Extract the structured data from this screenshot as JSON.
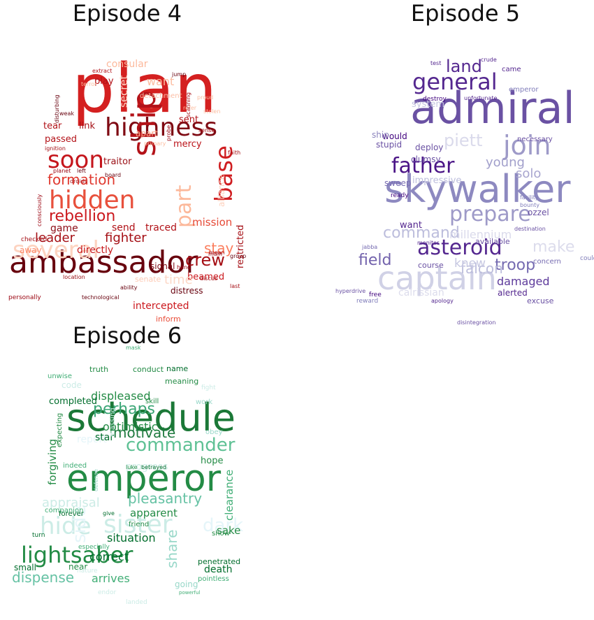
{
  "chart_data": [
    {
      "type": "wordcloud",
      "title": "Episode 4",
      "colormap": "Reds",
      "words": [
        {
          "text": "plan",
          "size": 96,
          "color": "#d42020"
        },
        {
          "text": "ambassador",
          "size": 44,
          "color": "#67000d"
        },
        {
          "text": "highness",
          "size": 36,
          "color": "#7f0a13"
        },
        {
          "text": "ship",
          "size": 46,
          "color": "#b31218"
        },
        {
          "text": "soon",
          "size": 34,
          "color": "#c5161c"
        },
        {
          "text": "hidden",
          "size": 36,
          "color": "#e8503c"
        },
        {
          "text": "base",
          "size": 34,
          "color": "#cf1d20"
        },
        {
          "text": "part",
          "size": 30,
          "color": "#fcb89a"
        },
        {
          "text": "several",
          "size": 34,
          "color": "#fdd3c0"
        },
        {
          "text": "formation",
          "size": 20,
          "color": "#e0392f"
        },
        {
          "text": "rebellion",
          "size": 22,
          "color": "#cb181d"
        },
        {
          "text": "leader",
          "size": 18,
          "color": "#a50f15"
        },
        {
          "text": "fighter",
          "size": 18,
          "color": "#a50f15"
        },
        {
          "text": "crew",
          "size": 24,
          "color": "#a50f15"
        },
        {
          "text": "stay",
          "size": 20,
          "color": "#fb7d5d"
        },
        {
          "text": "mission",
          "size": 15,
          "color": "#e64a37"
        },
        {
          "text": "send",
          "size": 14,
          "color": "#b11218"
        },
        {
          "text": "traced",
          "size": 14,
          "color": "#b11218"
        },
        {
          "text": "game",
          "size": 14,
          "color": "#8d0c15"
        },
        {
          "text": "directly",
          "size": 14,
          "color": "#c71b1e"
        },
        {
          "text": "beamed",
          "size": 13,
          "color": "#cb181d"
        },
        {
          "text": "signal",
          "size": 12,
          "color": "#7b0811"
        },
        {
          "text": "restricted",
          "size": 13,
          "color": "#a50f15"
        },
        {
          "text": "consular",
          "size": 14,
          "color": "#fcb99c"
        },
        {
          "text": "want",
          "size": 16,
          "color": "#fcbda1"
        },
        {
          "text": "play",
          "size": 13,
          "color": "#b31218"
        },
        {
          "text": "tear",
          "size": 13,
          "color": "#b11218"
        },
        {
          "text": "link",
          "size": 13,
          "color": "#a50f15"
        },
        {
          "text": "passed",
          "size": 13,
          "color": "#b31218"
        },
        {
          "text": "sent",
          "size": 13,
          "color": "#b31218"
        },
        {
          "text": "mercy",
          "size": 13,
          "color": "#bb141a"
        },
        {
          "text": "apart",
          "size": 12,
          "color": "#fca487"
        },
        {
          "text": "traitor",
          "size": 13,
          "color": "#9a0e14"
        },
        {
          "text": "time",
          "size": 18,
          "color": "#fdd8c7"
        },
        {
          "text": "distress",
          "size": 12,
          "color": "#67000d"
        },
        {
          "text": "intercepted",
          "size": 14,
          "color": "#cb181d"
        },
        {
          "text": "inform",
          "size": 11,
          "color": "#e94d39"
        },
        {
          "text": "senate",
          "size": 11,
          "color": "#fdcab5"
        },
        {
          "text": "alliance",
          "size": 12,
          "color": "#fdd0bc"
        },
        {
          "text": "detachment",
          "size": 10,
          "color": "#fcbea5"
        },
        {
          "text": "extract",
          "size": 8,
          "color": "#b3151b"
        },
        {
          "text": "jump",
          "size": 8,
          "color": "#67000d"
        },
        {
          "text": "secret",
          "size": 15,
          "color": "#fdd5c4"
        },
        {
          "text": "technological",
          "size": 8,
          "color": "#67000d"
        },
        {
          "text": "personally",
          "size": 9,
          "color": "#99000d"
        },
        {
          "text": "checked",
          "size": 9,
          "color": "#a50f15"
        },
        {
          "text": "away",
          "size": 12,
          "color": "#fc8a6a"
        },
        {
          "text": "consciously",
          "size": 8,
          "color": "#99000d"
        },
        {
          "text": "location",
          "size": 8,
          "color": "#9a0e14"
        },
        {
          "text": "discus",
          "size": 8,
          "color": "#a50f15"
        },
        {
          "text": "ability",
          "size": 8,
          "color": "#67000d"
        },
        {
          "text": "hand",
          "size": 8,
          "color": "#99000d"
        },
        {
          "text": "group",
          "size": 8,
          "color": "#67000d"
        },
        {
          "text": "droids",
          "size": 8,
          "color": "#a50f15"
        },
        {
          "text": "left",
          "size": 8,
          "color": "#67000d"
        },
        {
          "text": "planet",
          "size": 8,
          "color": "#99000d"
        },
        {
          "text": "ignition",
          "size": 8,
          "color": "#a50f15"
        },
        {
          "text": "disturbing",
          "size": 8,
          "color": "#67000d"
        },
        {
          "text": "weak",
          "size": 8,
          "color": "#67000d"
        },
        {
          "text": "sense",
          "size": 8,
          "color": "#a50f15"
        },
        {
          "text": "proud",
          "size": 8,
          "color": "#fcbda1"
        },
        {
          "text": "refer",
          "size": 8,
          "color": "#fcbda1"
        },
        {
          "text": "probe",
          "size": 8,
          "color": "#99000d"
        },
        {
          "text": "scanning",
          "size": 8,
          "color": "#a50f15"
        },
        {
          "text": "faith",
          "size": 8,
          "color": "#a50f15"
        },
        {
          "text": "board",
          "size": 8,
          "color": "#67000d"
        },
        {
          "text": "primary",
          "size": 8,
          "color": "#fcbda1"
        },
        {
          "text": "mean",
          "size": 8,
          "color": "#a50f15"
        },
        {
          "text": "main",
          "size": 8,
          "color": "#a50f15"
        },
        {
          "text": "last",
          "size": 8,
          "color": "#a50f15"
        },
        {
          "text": "terror",
          "size": 8,
          "color": "#fcbda1"
        },
        {
          "text": "stolen",
          "size": 8,
          "color": "#fcbda1"
        }
      ]
    },
    {
      "type": "wordcloud",
      "title": "Episode 5",
      "colormap": "Purples",
      "words": [
        {
          "text": "admiral",
          "size": 62,
          "color": "#6a51a3"
        },
        {
          "text": "skywalker",
          "size": 54,
          "color": "#8d89c0"
        },
        {
          "text": "captain",
          "size": 46,
          "color": "#d0d1e6"
        },
        {
          "text": "general",
          "size": 32,
          "color": "#54278f"
        },
        {
          "text": "father",
          "size": 30,
          "color": "#4a1486"
        },
        {
          "text": "join",
          "size": 38,
          "color": "#9e9ac8"
        },
        {
          "text": "asteroid",
          "size": 30,
          "color": "#54278f"
        },
        {
          "text": "prepare",
          "size": 30,
          "color": "#9e9ac8"
        },
        {
          "text": "land",
          "size": 24,
          "color": "#54278f"
        },
        {
          "text": "piett",
          "size": 24,
          "color": "#dadaeb"
        },
        {
          "text": "command",
          "size": 22,
          "color": "#bcbddc"
        },
        {
          "text": "troop",
          "size": 22,
          "color": "#756bb1"
        },
        {
          "text": "field",
          "size": 22,
          "color": "#7262ac"
        },
        {
          "text": "falcon",
          "size": 20,
          "color": "#bcbddc"
        },
        {
          "text": "make",
          "size": 22,
          "color": "#dcdcec"
        },
        {
          "text": "young",
          "size": 18,
          "color": "#a19fcb"
        },
        {
          "text": "solo",
          "size": 18,
          "color": "#a9a6cf"
        },
        {
          "text": "damaged",
          "size": 16,
          "color": "#5d3a9b"
        },
        {
          "text": "knew",
          "size": 17,
          "color": "#c6c7e1"
        },
        {
          "text": "millennium",
          "size": 16,
          "color": "#dadaeb"
        },
        {
          "text": "calrissian",
          "size": 14,
          "color": "#dcdcec"
        },
        {
          "text": "impressive",
          "size": 13,
          "color": "#bcbddc"
        },
        {
          "text": "would",
          "size": 12,
          "color": "#3f007d"
        },
        {
          "text": "stupid",
          "size": 12,
          "color": "#6a51a3"
        },
        {
          "text": "deploy",
          "size": 12,
          "color": "#6a51a3"
        },
        {
          "text": "clumsy",
          "size": 12,
          "color": "#6a51a3"
        },
        {
          "text": "sweep",
          "size": 12,
          "color": "#7b6fb4"
        },
        {
          "text": "want",
          "size": 13,
          "color": "#54278f"
        },
        {
          "text": "ship",
          "size": 12,
          "color": "#8c84bd"
        },
        {
          "text": "system",
          "size": 13,
          "color": "#c5c5e0"
        },
        {
          "text": "ozzel",
          "size": 12,
          "color": "#6a51a3"
        },
        {
          "text": "available",
          "size": 11,
          "color": "#6a51a3"
        },
        {
          "text": "course",
          "size": 11,
          "color": "#6a51a3"
        },
        {
          "text": "alerted",
          "size": 12,
          "color": "#54278f"
        },
        {
          "text": "excuse",
          "size": 11,
          "color": "#6a51a3"
        },
        {
          "text": "concern",
          "size": 10,
          "color": "#756bb1"
        },
        {
          "text": "destroy",
          "size": 9,
          "color": "#3f007d"
        },
        {
          "text": "emperor",
          "size": 10,
          "color": "#807dba"
        },
        {
          "text": "necessary",
          "size": 10,
          "color": "#6a51a3"
        },
        {
          "text": "came",
          "size": 10,
          "color": "#54278f"
        },
        {
          "text": "crude",
          "size": 8,
          "color": "#54278f"
        },
        {
          "text": "test",
          "size": 8,
          "color": "#54278f"
        },
        {
          "text": "free",
          "size": 9,
          "color": "#3f007d"
        },
        {
          "text": "reward",
          "size": 9,
          "color": "#807dba"
        },
        {
          "text": "apology",
          "size": 8,
          "color": "#54278f"
        },
        {
          "text": "disintegration",
          "size": 8,
          "color": "#6a51a3"
        },
        {
          "text": "jabba",
          "size": 8,
          "color": "#756bb1"
        },
        {
          "text": "ready",
          "size": 9,
          "color": "#3f007d"
        },
        {
          "text": "facility",
          "size": 8,
          "color": "#807dba"
        },
        {
          "text": "bounty",
          "size": 8,
          "color": "#807dba"
        },
        {
          "text": "destination",
          "size": 8,
          "color": "#6a51a3"
        },
        {
          "text": "could",
          "size": 9,
          "color": "#807dba"
        },
        {
          "text": "unfortunate",
          "size": 8,
          "color": "#54278f"
        },
        {
          "text": "monitor",
          "size": 8,
          "color": "#54278f"
        },
        {
          "text": "hyperdrive",
          "size": 8,
          "color": "#6a51a3"
        }
      ]
    },
    {
      "type": "wordcloud",
      "title": "Episode 6",
      "colormap": "BuGn",
      "words": [
        {
          "text": "schedule",
          "size": 54,
          "color": "#1b7837"
        },
        {
          "text": "emperor",
          "size": 52,
          "color": "#238b45"
        },
        {
          "text": "sister",
          "size": 36,
          "color": "#ccece6"
        },
        {
          "text": "hide",
          "size": 34,
          "color": "#ccece6"
        },
        {
          "text": "lightsaber",
          "size": 32,
          "color": "#238b45"
        },
        {
          "text": "commander",
          "size": 26,
          "color": "#5fc195"
        },
        {
          "text": "perhaps",
          "size": 22,
          "color": "#3ba676"
        },
        {
          "text": "dispense",
          "size": 20,
          "color": "#66c2a4"
        },
        {
          "text": "motivate",
          "size": 20,
          "color": "#1f7a3f"
        },
        {
          "text": "pleasantry",
          "size": 20,
          "color": "#66c2a4"
        },
        {
          "text": "dark",
          "size": 26,
          "color": "#e5f5f9"
        },
        {
          "text": "side",
          "size": 26,
          "color": "#e5f5f9"
        },
        {
          "text": "share",
          "size": 20,
          "color": "#99d8c9"
        },
        {
          "text": "appraisal",
          "size": 18,
          "color": "#ccece6"
        },
        {
          "text": "situation",
          "size": 16,
          "color": "#006d2c"
        },
        {
          "text": "correct",
          "size": 16,
          "color": "#006d2c"
        },
        {
          "text": "arrives",
          "size": 16,
          "color": "#41ae76"
        },
        {
          "text": "optimistic",
          "size": 16,
          "color": "#238b45"
        },
        {
          "text": "displeased",
          "size": 16,
          "color": "#238b45"
        },
        {
          "text": "apparent",
          "size": 15,
          "color": "#238b45"
        },
        {
          "text": "clearance",
          "size": 15,
          "color": "#41ae76"
        },
        {
          "text": "forgiving",
          "size": 15,
          "color": "#238b45"
        },
        {
          "text": "sake",
          "size": 15,
          "color": "#238b45"
        },
        {
          "text": "death",
          "size": 14,
          "color": "#006d2c"
        },
        {
          "text": "progress",
          "size": 14,
          "color": "#ccece6"
        },
        {
          "text": "report",
          "size": 14,
          "color": "#e5f5f9"
        },
        {
          "text": "completed",
          "size": 13,
          "color": "#006d2c"
        },
        {
          "text": "star",
          "size": 14,
          "color": "#006d2c"
        },
        {
          "text": "hope",
          "size": 13,
          "color": "#238b45"
        },
        {
          "text": "code",
          "size": 12,
          "color": "#ccece6"
        },
        {
          "text": "truth",
          "size": 11,
          "color": "#238b45"
        },
        {
          "text": "conduct",
          "size": 11,
          "color": "#238b45"
        },
        {
          "text": "name",
          "size": 11,
          "color": "#006d2c"
        },
        {
          "text": "meaning",
          "size": 11,
          "color": "#238b45"
        },
        {
          "text": "unwise",
          "size": 10,
          "color": "#41ae76"
        },
        {
          "text": "skill",
          "size": 10,
          "color": "#238b45"
        },
        {
          "text": "work",
          "size": 10,
          "color": "#99d8c9"
        },
        {
          "text": "obey",
          "size": 10,
          "color": "#99d8c9"
        },
        {
          "text": "fight",
          "size": 9,
          "color": "#ccece6"
        },
        {
          "text": "small",
          "size": 12,
          "color": "#006d2c"
        },
        {
          "text": "near",
          "size": 12,
          "color": "#238b45"
        },
        {
          "text": "going",
          "size": 12,
          "color": "#99d8c9"
        },
        {
          "text": "penetrated",
          "size": 11,
          "color": "#006d2c"
        },
        {
          "text": "pointless",
          "size": 10,
          "color": "#41ae76"
        },
        {
          "text": "companion",
          "size": 10,
          "color": "#41ae76"
        },
        {
          "text": "forever",
          "size": 10,
          "color": "#006d2c"
        },
        {
          "text": "indeed",
          "size": 10,
          "color": "#41ae76"
        },
        {
          "text": "friend",
          "size": 10,
          "color": "#238b45"
        },
        {
          "text": "show",
          "size": 10,
          "color": "#238b45"
        },
        {
          "text": "turn",
          "size": 9,
          "color": "#006d2c"
        },
        {
          "text": "especially",
          "size": 9,
          "color": "#41ae76"
        },
        {
          "text": "expecting",
          "size": 10,
          "color": "#238b45"
        },
        {
          "text": "massing",
          "size": 10,
          "color": "#ccece6"
        },
        {
          "text": "betrayed",
          "size": 8,
          "color": "#006d2c"
        },
        {
          "text": "luke",
          "size": 8,
          "color": "#238b45"
        },
        {
          "text": "defense",
          "size": 8,
          "color": "#99d8c9"
        },
        {
          "text": "give",
          "size": 8,
          "color": "#006d2c"
        },
        {
          "text": "mask",
          "size": 8,
          "color": "#41ae76"
        },
        {
          "text": "landed",
          "size": 9,
          "color": "#ccece6"
        },
        {
          "text": "endor",
          "size": 9,
          "color": "#ccece6"
        },
        {
          "text": "nature",
          "size": 9,
          "color": "#ccece6"
        },
        {
          "text": "powerful",
          "size": 7,
          "color": "#41ae76"
        }
      ]
    }
  ]
}
